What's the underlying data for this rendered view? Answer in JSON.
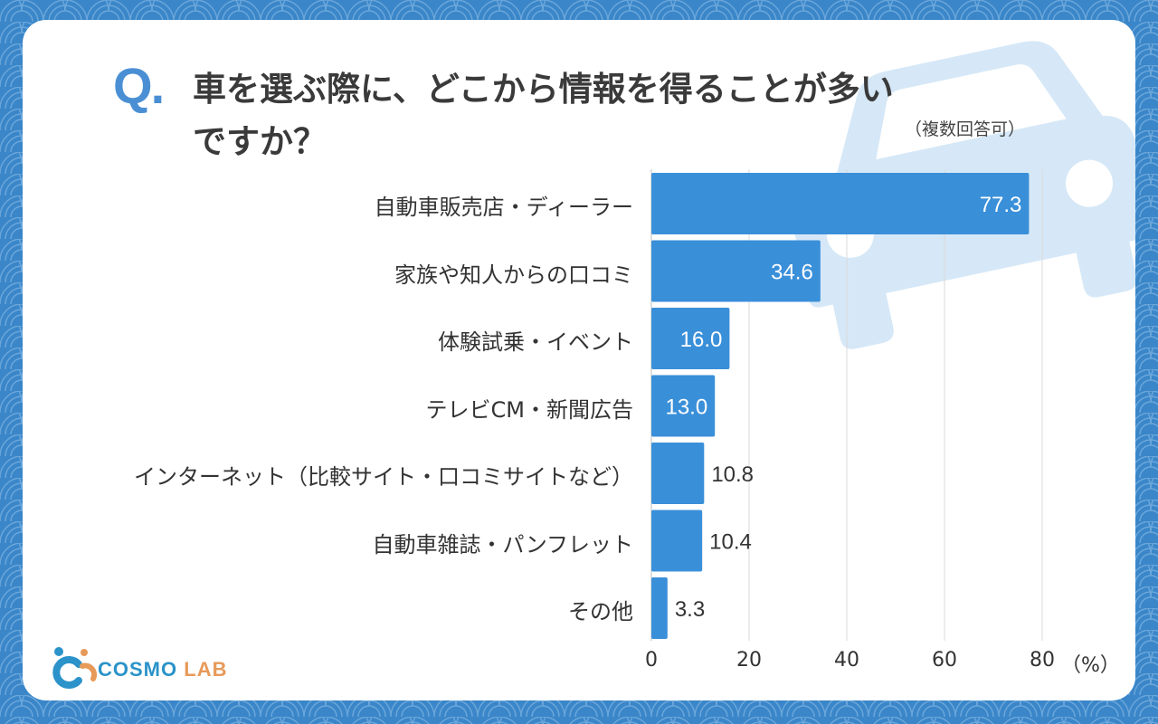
{
  "question": {
    "mark": "Q",
    "dot": ".",
    "line1": "車を選ぶ際に、どこから情報を得ることが多い",
    "line2": "ですか？",
    "note": "（複数回答可）"
  },
  "colors": {
    "background": "#3a86c8",
    "bar": "#3a8fd9",
    "accent": "#4a8fd4",
    "car": "#d6e8f7"
  },
  "chart_data": {
    "type": "bar",
    "orientation": "horizontal",
    "title": "車を選ぶ際に、どこから情報を得ることが多いですか？",
    "categories": [
      "自動車販売店・ディーラー",
      "家族や知人からの口コミ",
      "体験試乗・イベント",
      "テレビCM・新聞広告",
      "インターネット（比較サイト・口コミサイトなど）",
      "自動車雑誌・パンフレット",
      "その他"
    ],
    "values": [
      77.3,
      34.6,
      16.0,
      13.0,
      10.8,
      10.4,
      3.3
    ],
    "value_labels": [
      "77.3",
      "34.6",
      "16.0",
      "13.0",
      "10.8",
      "10.4",
      "3.3"
    ],
    "xlim": [
      0,
      80
    ],
    "ticks": [
      "0",
      "20",
      "40",
      "60",
      "80"
    ],
    "tick_values": [
      0,
      20,
      40,
      60,
      80
    ],
    "unit": "（%）",
    "grid": true
  },
  "logo": {
    "brand": "COSMO",
    "suffix": "LAB"
  }
}
